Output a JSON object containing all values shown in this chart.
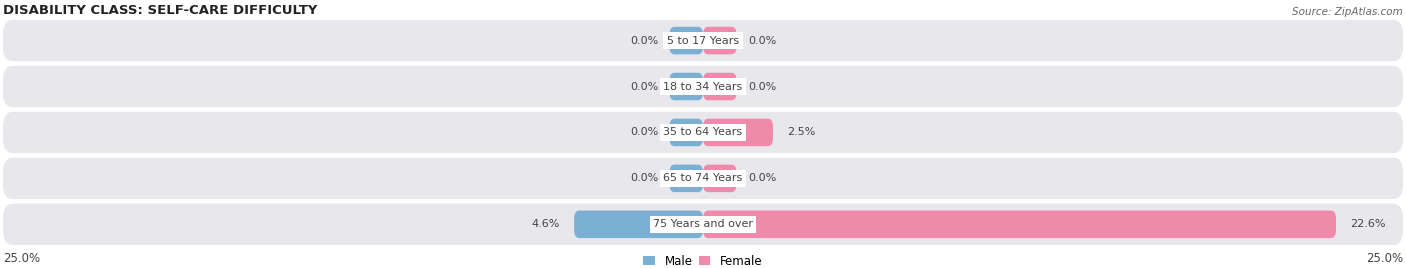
{
  "title": "DISABILITY CLASS: SELF-CARE DIFFICULTY",
  "source": "Source: ZipAtlas.com",
  "categories": [
    "5 to 17 Years",
    "18 to 34 Years",
    "35 to 64 Years",
    "65 to 74 Years",
    "75 Years and over"
  ],
  "male_values": [
    0.0,
    0.0,
    0.0,
    0.0,
    4.6
  ],
  "female_values": [
    0.0,
    0.0,
    2.5,
    0.0,
    22.6
  ],
  "x_max": 25.0,
  "male_color": "#7bafd4",
  "female_color": "#f08aaa",
  "row_bg_color": "#e8e8ec",
  "row_bg_color_alt": "#f0f0f4",
  "label_color": "#444444",
  "title_color": "#222222",
  "source_color": "#666666",
  "title_fontsize": 9.5,
  "axis_fontsize": 8.5,
  "label_fontsize": 8,
  "legend_fontsize": 8.5,
  "min_bar_stub": 1.2
}
